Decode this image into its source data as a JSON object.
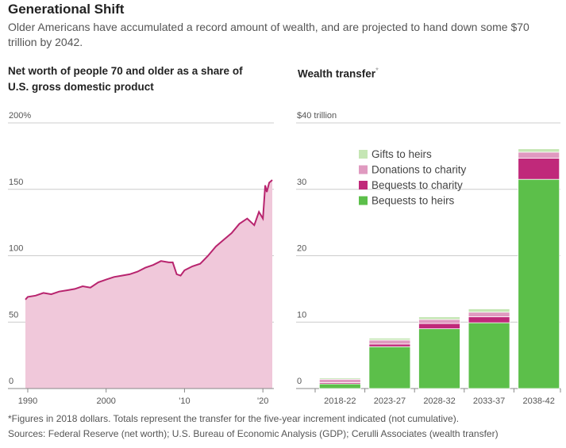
{
  "header": {
    "title": "Generational Shift",
    "subtitle": "Older Americans have accumulated a record amount of wealth, and are projected to hand down some $70 trillion by 2042."
  },
  "chart_data": [
    {
      "type": "area",
      "title": "Net worth of people 70 and older as a share of U.S. gross domestic product",
      "x": [
        1989.7,
        1990,
        1991,
        1992,
        1993,
        1994,
        1995,
        1996,
        1997,
        1998,
        1999,
        2000,
        2001,
        2002,
        2003,
        2004,
        2005,
        2006,
        2007,
        2008,
        2008.5,
        2009,
        2009.5,
        2010,
        2011,
        2012,
        2013,
        2014,
        2015,
        2016,
        2017,
        2018,
        2018.9,
        2019.5,
        2020,
        2020.3,
        2020.5,
        2020.8,
        2021.2
      ],
      "values": [
        67,
        69,
        70,
        72,
        71,
        73,
        74,
        75,
        77,
        76,
        80,
        82,
        84,
        85,
        86,
        88,
        91,
        93,
        96,
        95,
        95,
        86,
        85,
        89,
        92,
        94,
        100,
        107,
        112,
        117,
        124,
        128,
        123,
        133,
        128,
        153,
        148,
        155,
        157
      ],
      "color": "#b8246e",
      "fill": "#f0c8da",
      "xlim": [
        1989.7,
        2021.3
      ],
      "xticks": [
        1990,
        2000,
        {
          "value": 2010,
          "label": "'10"
        },
        {
          "value": 2020,
          "label": "'20"
        }
      ],
      "ylim": [
        0,
        200
      ],
      "yticks": [
        0,
        50,
        100,
        150,
        {
          "value": 200,
          "label": "200%"
        }
      ],
      "grid": true
    },
    {
      "type": "bar",
      "stacked": true,
      "title": "Wealth transfer",
      "title_marker": "*",
      "categories": [
        "2018-22",
        "2023-27",
        "2028-32",
        "2033-37",
        "2038-42"
      ],
      "series": [
        {
          "name": "Bequests to heirs",
          "color": "#5cbf4a",
          "values": [
            0.7,
            6.3,
            9.0,
            9.9,
            31.5
          ]
        },
        {
          "name": "Bequests to charity",
          "color": "#c0297a",
          "values": [
            0.2,
            0.4,
            0.8,
            0.9,
            3.2
          ]
        },
        {
          "name": "Donations to charity",
          "color": "#e09ac0",
          "values": [
            0.5,
            0.6,
            0.6,
            0.7,
            0.9
          ]
        },
        {
          "name": "Gifts to heirs",
          "color": "#c5e6b4",
          "values": [
            0.2,
            0.3,
            0.4,
            0.5,
            0.5
          ]
        }
      ],
      "ylim": [
        0,
        40
      ],
      "yticks": [
        0,
        10,
        20,
        30,
        {
          "value": 40,
          "label": "$40 trillion"
        }
      ],
      "grid": true,
      "legend": "top-left"
    }
  ],
  "footer": {
    "note": "*Figures in 2018 dollars. Totals represent the transfer for the five-year increment indicated (not cumulative).",
    "sources": "Sources: Federal Reserve (net worth); U.S. Bureau of Economic Analysis (GDP); Cerulli Associates (wealth transfer)"
  }
}
